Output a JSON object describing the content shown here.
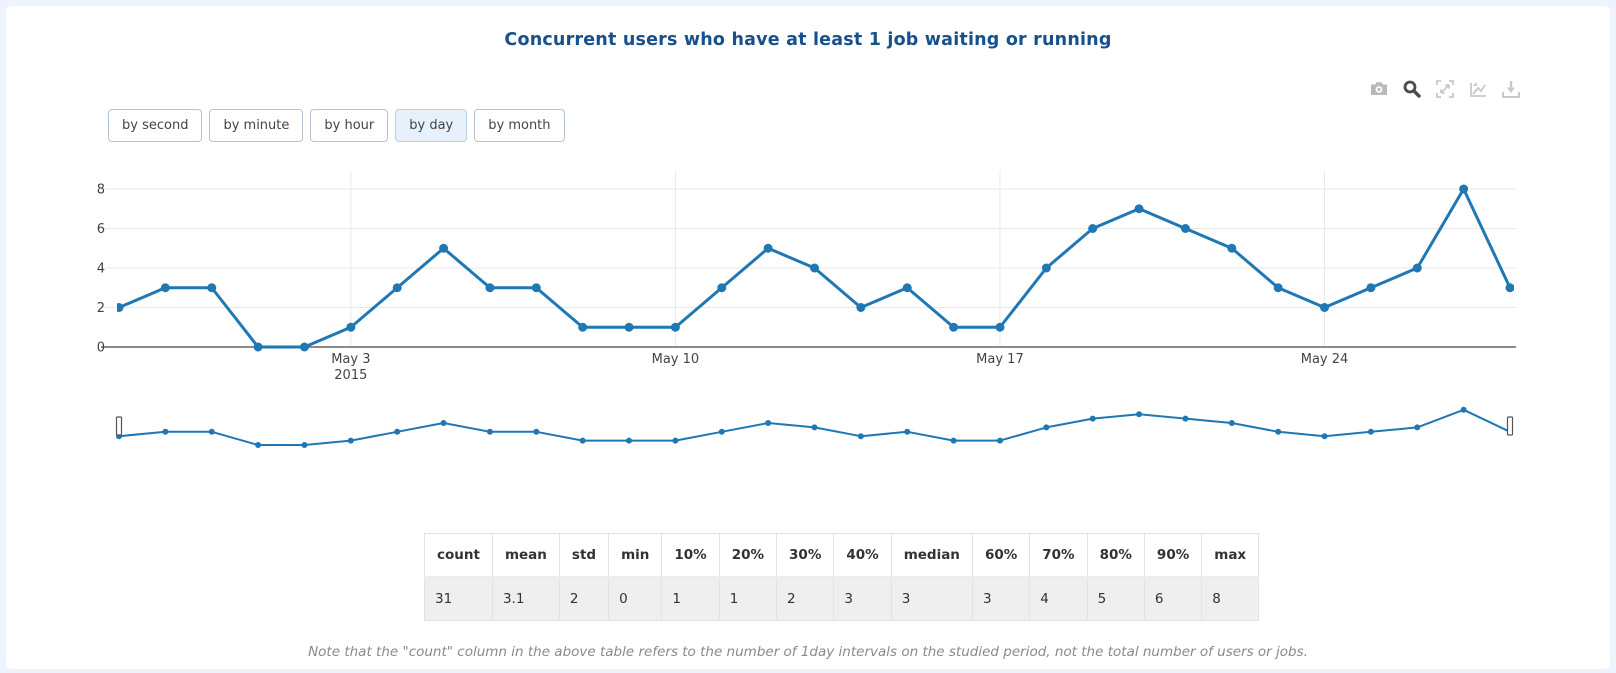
{
  "page": {
    "title": "Concurrent users who have at least 1 job waiting or running"
  },
  "modebar": {
    "buttons": [
      {
        "name": "camera-icon",
        "action": "download plot as png"
      },
      {
        "name": "zoom-icon",
        "action": "zoom",
        "active": true
      },
      {
        "name": "autoscale-icon",
        "action": "autoscale"
      },
      {
        "name": "reset-axes-icon",
        "action": "reset axes"
      },
      {
        "name": "download-icon",
        "action": "download data"
      }
    ]
  },
  "range_buttons": [
    {
      "label": "by second",
      "active": false
    },
    {
      "label": "by minute",
      "active": false
    },
    {
      "label": "by hour",
      "active": false
    },
    {
      "label": "by day",
      "active": true
    },
    {
      "label": "by month",
      "active": false
    }
  ],
  "chart_data": {
    "type": "line",
    "title": "Concurrent users who have at least 1 job waiting or running",
    "values": [
      2,
      3,
      3,
      0,
      0,
      1,
      3,
      5,
      3,
      3,
      1,
      1,
      1,
      3,
      5,
      4,
      2,
      3,
      1,
      1,
      4,
      6,
      7,
      6,
      5,
      3,
      2,
      3,
      4,
      8,
      3
    ],
    "point_count": 31,
    "x_ticks": [
      {
        "index": 5,
        "label": "May 3",
        "sublabel": "2015"
      },
      {
        "index": 12,
        "label": "May 10",
        "sublabel": ""
      },
      {
        "index": 19,
        "label": "May 17",
        "sublabel": ""
      },
      {
        "index": 26,
        "label": "May 24",
        "sublabel": ""
      }
    ],
    "y_ticks": [
      0,
      2,
      4,
      6,
      8
    ],
    "ylim": [
      0,
      8.5
    ],
    "grid": true,
    "legend": "none",
    "line_color": "#1f77b4",
    "has_rangeslider": true
  },
  "stats_table": {
    "headers": [
      "count",
      "mean",
      "std",
      "min",
      "10%",
      "20%",
      "30%",
      "40%",
      "median",
      "60%",
      "70%",
      "80%",
      "90%",
      "max"
    ],
    "values": [
      "31",
      "3.1",
      "2",
      "0",
      "1",
      "1",
      "2",
      "3",
      "3",
      "3",
      "4",
      "5",
      "6",
      "8"
    ]
  },
  "note": "Note that the \"count\" column in the above table refers to the number of 1day intervals on the studied period, not the total number of users or jobs."
}
